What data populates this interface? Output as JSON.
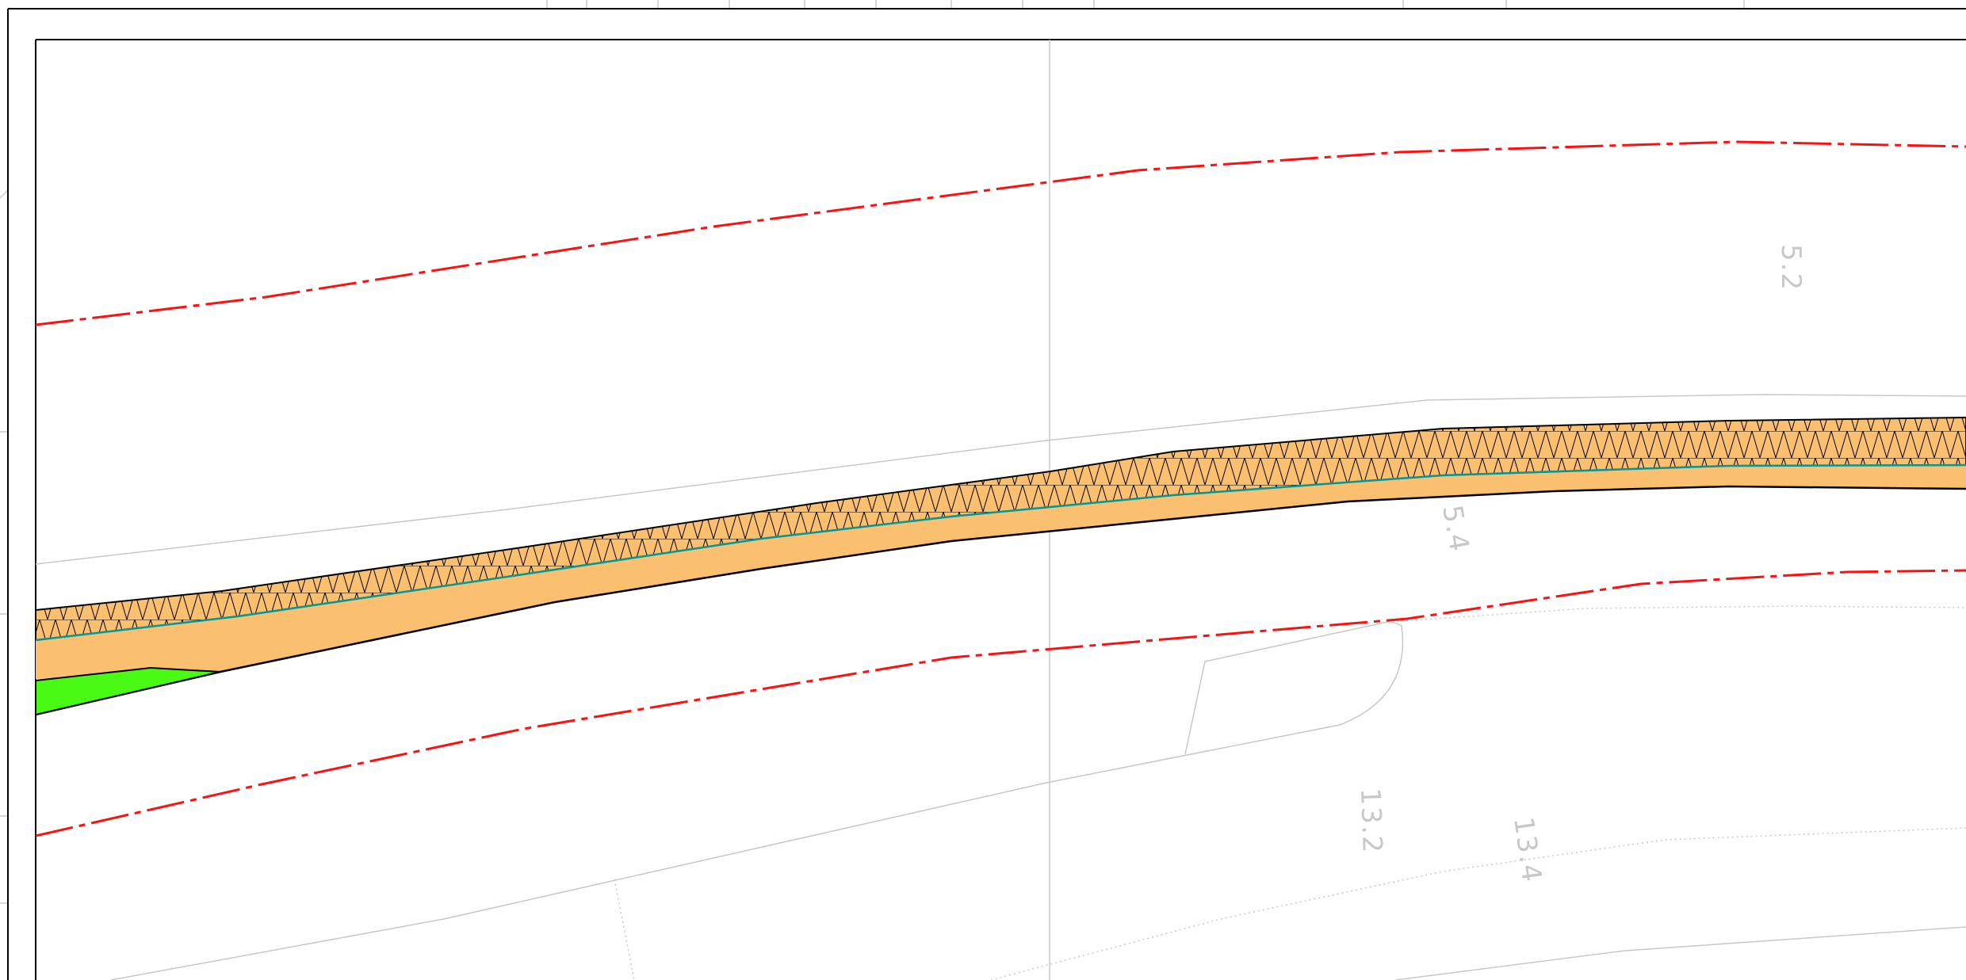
{
  "drawing": {
    "colors": {
      "background": "#ffffff",
      "frame": "#000000",
      "setback_line": "#ff1010",
      "fill_layer": "#fbc06f",
      "hatch": "#000000",
      "teal_edge": "#009898",
      "green_patch": "#48fa14",
      "reference_lines": "#c8c8c8"
    },
    "labels": {
      "label_5_2": "5.2",
      "label_5_4": "5.4",
      "label_13_2": "13.2",
      "label_13_4": "13.4"
    }
  }
}
